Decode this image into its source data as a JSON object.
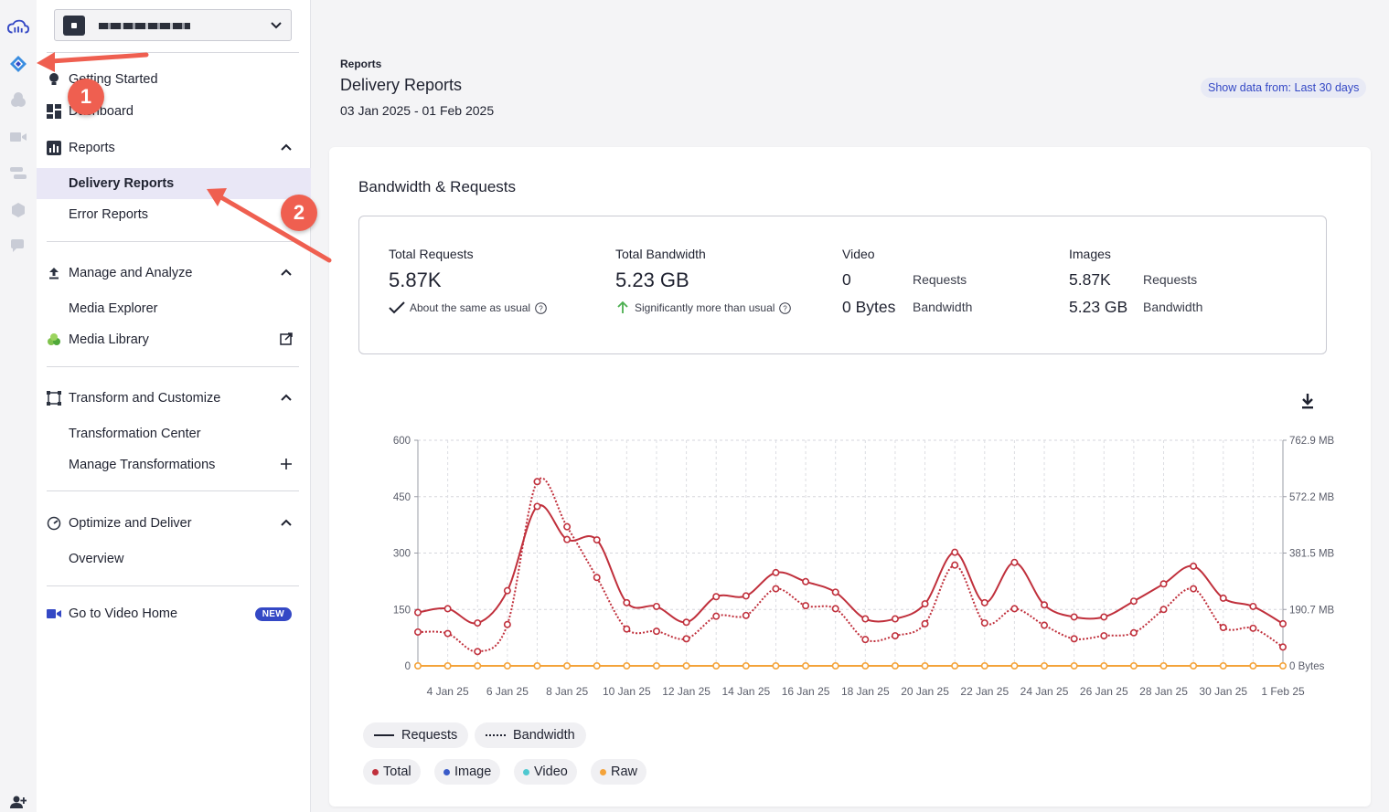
{
  "sidebar": {
    "getting_started": "Getting Started",
    "dashboard": "Dashboard",
    "reports": "Reports",
    "delivery_reports": "Delivery Reports",
    "error_reports": "Error Reports",
    "manage_analyze": "Manage and Analyze",
    "media_explorer": "Media Explorer",
    "media_library": "Media Library",
    "transform_customize": "Transform and Customize",
    "transformation_center": "Transformation Center",
    "manage_transformations": "Manage Transformations",
    "optimize_deliver": "Optimize and Deliver",
    "overview": "Overview",
    "video_home": "Go to Video Home",
    "new_badge": "NEW"
  },
  "header": {
    "breadcrumb": "Reports",
    "title": "Delivery Reports",
    "date_range": "03 Jan 2025 - 01 Feb 2025",
    "show_data": "Show data from: Last 30 days"
  },
  "card": {
    "title": "Bandwidth & Requests",
    "total_requests_label": "Total Requests",
    "total_requests_value": "5.87K",
    "total_requests_note": "About the same as usual",
    "total_bandwidth_label": "Total Bandwidth",
    "total_bandwidth_value": "5.23 GB",
    "total_bandwidth_note": "Significantly more than usual",
    "video_label": "Video",
    "video_requests": "0",
    "video_bandwidth": "0 Bytes",
    "images_label": "Images",
    "images_requests": "5.87K",
    "images_bandwidth": "5.23 GB",
    "requests_word": "Requests",
    "bandwidth_word": "Bandwidth"
  },
  "legend": {
    "requests": "Requests",
    "bandwidth": "Bandwidth",
    "total": "Total",
    "image": "Image",
    "video": "Video",
    "raw": "Raw"
  },
  "annotations": {
    "one": "1",
    "two": "2"
  },
  "colors": {
    "total": "#c0303c",
    "image": "#3a5bc8",
    "video": "#4fc8d0",
    "raw": "#f4a33a",
    "accent": "#3448c5"
  },
  "chart_data": {
    "type": "line",
    "title": "Bandwidth & Requests",
    "x_tick_labels": [
      "4 Jan 25",
      "6 Jan 25",
      "8 Jan 25",
      "10 Jan 25",
      "12 Jan 25",
      "14 Jan 25",
      "16 Jan 25",
      "18 Jan 25",
      "20 Jan 25",
      "22 Jan 25",
      "24 Jan 25",
      "26 Jan 25",
      "28 Jan 25",
      "30 Jan 25",
      "1 Feb 25"
    ],
    "y_left_ticks": [
      "0",
      "150",
      "300",
      "450",
      "600"
    ],
    "y_left_range": [
      0,
      600
    ],
    "y_right_ticks": [
      "0 Bytes",
      "190.7 MB",
      "381.5 MB",
      "572.2 MB",
      "762.9 MB"
    ],
    "y_right_range_mb": [
      0,
      762.9
    ],
    "series": [
      {
        "name": "Total Requests",
        "axis": "left",
        "style": "solid",
        "color": "#c0303c",
        "values": [
          142,
          152,
          114,
          200,
          424,
          336,
          335,
          168,
          158,
          116,
          184,
          186,
          248,
          224,
          196,
          125,
          125,
          165,
          302,
          168,
          275,
          162,
          130,
          130,
          172,
          218,
          265,
          180,
          158,
          112
        ]
      },
      {
        "name": "Total Bandwidth",
        "axis": "left",
        "style": "dotted",
        "color": "#c0303c",
        "values": [
          90,
          86,
          38,
          110,
          490,
          370,
          235,
          98,
          92,
          72,
          132,
          134,
          205,
          160,
          152,
          70,
          80,
          112,
          268,
          114,
          152,
          108,
          72,
          80,
          88,
          150,
          205,
          102,
          100,
          50
        ]
      },
      {
        "name": "Video / Raw",
        "axis": "left",
        "style": "solid",
        "color": "#f4a33a",
        "values": [
          0,
          0,
          0,
          0,
          0,
          0,
          0,
          0,
          0,
          0,
          0,
          0,
          0,
          0,
          0,
          0,
          0,
          0,
          0,
          0,
          0,
          0,
          0,
          0,
          0,
          0,
          0,
          0,
          0,
          0
        ]
      }
    ]
  }
}
